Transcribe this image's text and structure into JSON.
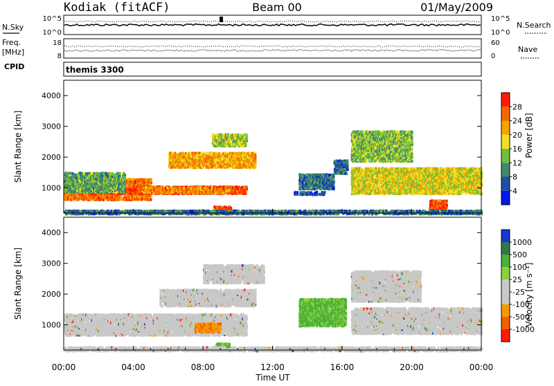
{
  "header": {
    "station": "Kodiak (fitACF)",
    "beam": "Beam 00",
    "date": "01/May/2009"
  },
  "strip_panels": {
    "nsky": {
      "label": "N.Sky",
      "ticks": [
        "10^5",
        "10^0"
      ],
      "right_label": "N.Search",
      "right_ticks": [
        "10^5",
        "10^0"
      ]
    },
    "freq": {
      "label_line1": "Freq.",
      "label_line2": "[MHz]",
      "ticks": [
        "18",
        "8"
      ],
      "right_label": "Nave",
      "right_ticks": [
        "60",
        "0"
      ]
    },
    "cpid": {
      "label": "CPID",
      "value": "themis 3300"
    }
  },
  "colors": {
    "power_scale": [
      "#0018e8",
      "#1f4fa0",
      "#3f8a6c",
      "#6fbf3c",
      "#f0e020",
      "#f5a400",
      "#f06a00",
      "#ff1a00"
    ],
    "velocity_scale": [
      "#1838d0",
      "#2f7a4c",
      "#4cb038",
      "#8ad040",
      "#c8c8c8",
      "#c8c8c8",
      "#f59a00",
      "#f06000",
      "#ff1a00"
    ],
    "ground_scatter": "#c8c8c8"
  },
  "chart_data": [
    {
      "type": "heatmap",
      "title": "Power",
      "ylabel": "Slant Range [km]",
      "ylim": [
        180,
        4500
      ],
      "yticks": [
        "1000",
        "2000",
        "3000",
        "4000"
      ],
      "colorbar": {
        "label": "Power [dB]",
        "ticks": [
          "4",
          "8",
          "12",
          "16",
          "20",
          "24",
          "28"
        ],
        "range": [
          0,
          32
        ]
      },
      "regions": [
        {
          "t": [
            0.0,
            5.0
          ],
          "r": [
            650,
            1350
          ],
          "value": 25
        },
        {
          "t": [
            1.5,
            10.5
          ],
          "r": [
            850,
            1100
          ],
          "value": 28
        },
        {
          "t": [
            4.5,
            9.5
          ],
          "r": [
            880,
            1080
          ],
          "value": 24
        },
        {
          "t": [
            0.0,
            3.5
          ],
          "r": [
            900,
            1550
          ],
          "value": 12
        },
        {
          "t": [
            6.0,
            11.0
          ],
          "r": [
            1700,
            2200
          ],
          "value": 22
        },
        {
          "t": [
            8.5,
            10.5
          ],
          "r": [
            2400,
            2800
          ],
          "value": 16
        },
        {
          "t": [
            8.6,
            9.6
          ],
          "r": [
            200,
            450
          ],
          "value": 28
        },
        {
          "t": [
            13.2,
            15.0
          ],
          "r": [
            820,
            930
          ],
          "value": 6
        },
        {
          "t": [
            13.5,
            15.5
          ],
          "r": [
            1000,
            1500
          ],
          "value": 8
        },
        {
          "t": [
            15.5,
            16.3
          ],
          "r": [
            1500,
            1950
          ],
          "value": 8
        },
        {
          "t": [
            16.5,
            24.0
          ],
          "r": [
            850,
            1700
          ],
          "value": 18
        },
        {
          "t": [
            16.5,
            20.0
          ],
          "r": [
            1900,
            2900
          ],
          "value": 14
        },
        {
          "t": [
            21.0,
            22.0
          ],
          "r": [
            350,
            650
          ],
          "value": 28
        },
        {
          "t": [
            0.0,
            24.0
          ],
          "r": [
            190,
            320
          ],
          "value": 8
        }
      ]
    },
    {
      "type": "heatmap",
      "title": "Velocity",
      "ylabel": "Slant Range [km]",
      "ylim": [
        180,
        4500
      ],
      "yticks": [
        "1000",
        "2000",
        "3000",
        "4000"
      ],
      "xlabel": "Time UT",
      "xticks": [
        "00:00",
        "04:00",
        "08:00",
        "12:00",
        "16:00",
        "20:00",
        "00:00"
      ],
      "xlim": [
        0,
        24
      ],
      "colorbar": {
        "label": "Velocity [m s⁻¹]",
        "ticks": [
          "1000",
          "500",
          "100",
          "25",
          "-25",
          "-100",
          "-500",
          "-1000"
        ]
      },
      "regions": [
        {
          "t": [
            0.0,
            10.5
          ],
          "r": [
            700,
            1400
          ],
          "value": "ground"
        },
        {
          "t": [
            5.5,
            11.0
          ],
          "r": [
            1650,
            2200
          ],
          "value": "ground"
        },
        {
          "t": [
            8.0,
            11.5
          ],
          "r": [
            2400,
            3000
          ],
          "value": "ground"
        },
        {
          "t": [
            7.5,
            9.0
          ],
          "r": [
            800,
            1100
          ],
          "value": -300
        },
        {
          "t": [
            8.7,
            9.5
          ],
          "r": [
            200,
            450
          ],
          "value": 150
        },
        {
          "t": [
            13.5,
            16.2
          ],
          "r": [
            1000,
            1900
          ],
          "value": 150
        },
        {
          "t": [
            16.5,
            24.0
          ],
          "r": [
            750,
            1600
          ],
          "value": "ground"
        },
        {
          "t": [
            16.5,
            20.5
          ],
          "r": [
            1800,
            2800
          ],
          "value": "ground"
        },
        {
          "t": [
            0.0,
            24.0
          ],
          "r": [
            190,
            330
          ],
          "value": "ground"
        }
      ]
    }
  ]
}
